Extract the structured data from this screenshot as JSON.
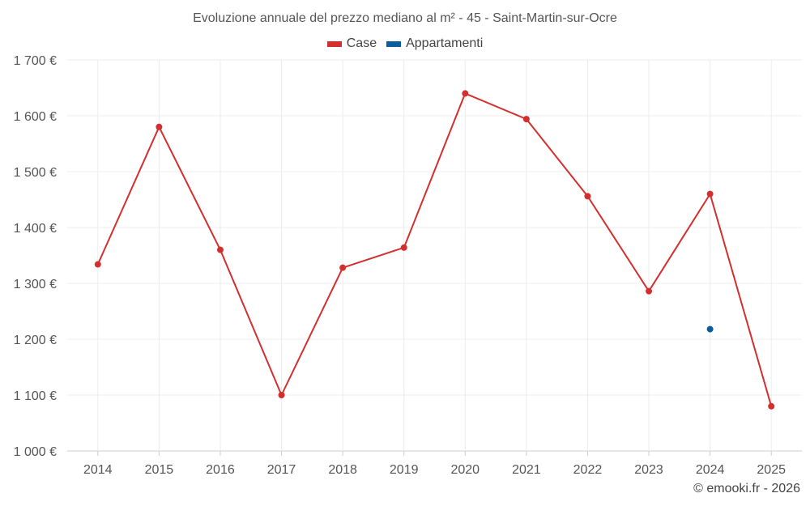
{
  "chart_data": {
    "type": "line",
    "title": "Evoluzione annuale del prezzo mediano al m² - 45 - Saint-Martin-sur-Ocre",
    "categories": [
      "2014",
      "2015",
      "2016",
      "2017",
      "2018",
      "2019",
      "2020",
      "2021",
      "2022",
      "2023",
      "2024",
      "2025"
    ],
    "series": [
      {
        "name": "Case",
        "color": "#d32f2f",
        "values": [
          1334,
          1580,
          1360,
          1100,
          1328,
          1364,
          1640,
          1594,
          1456,
          1286,
          1460,
          1080
        ]
      },
      {
        "name": "Appartamenti",
        "color": "#0b5e9b",
        "values": [
          null,
          null,
          null,
          null,
          null,
          null,
          null,
          null,
          null,
          null,
          1218,
          null
        ]
      }
    ],
    "ylim": [
      1000,
      1700
    ],
    "yticks": [
      1000,
      1100,
      1200,
      1300,
      1400,
      1500,
      1600,
      1700
    ],
    "ytick_labels": [
      "1 000 €",
      "1 100 €",
      "1 200 €",
      "1 300 €",
      "1 400 €",
      "1 500 €",
      "1 600 €",
      "1 700 €"
    ],
    "xlabel": "",
    "ylabel": "",
    "grid": true,
    "legend_position": "top-center"
  },
  "credit": "© emooki.fr - 2026"
}
